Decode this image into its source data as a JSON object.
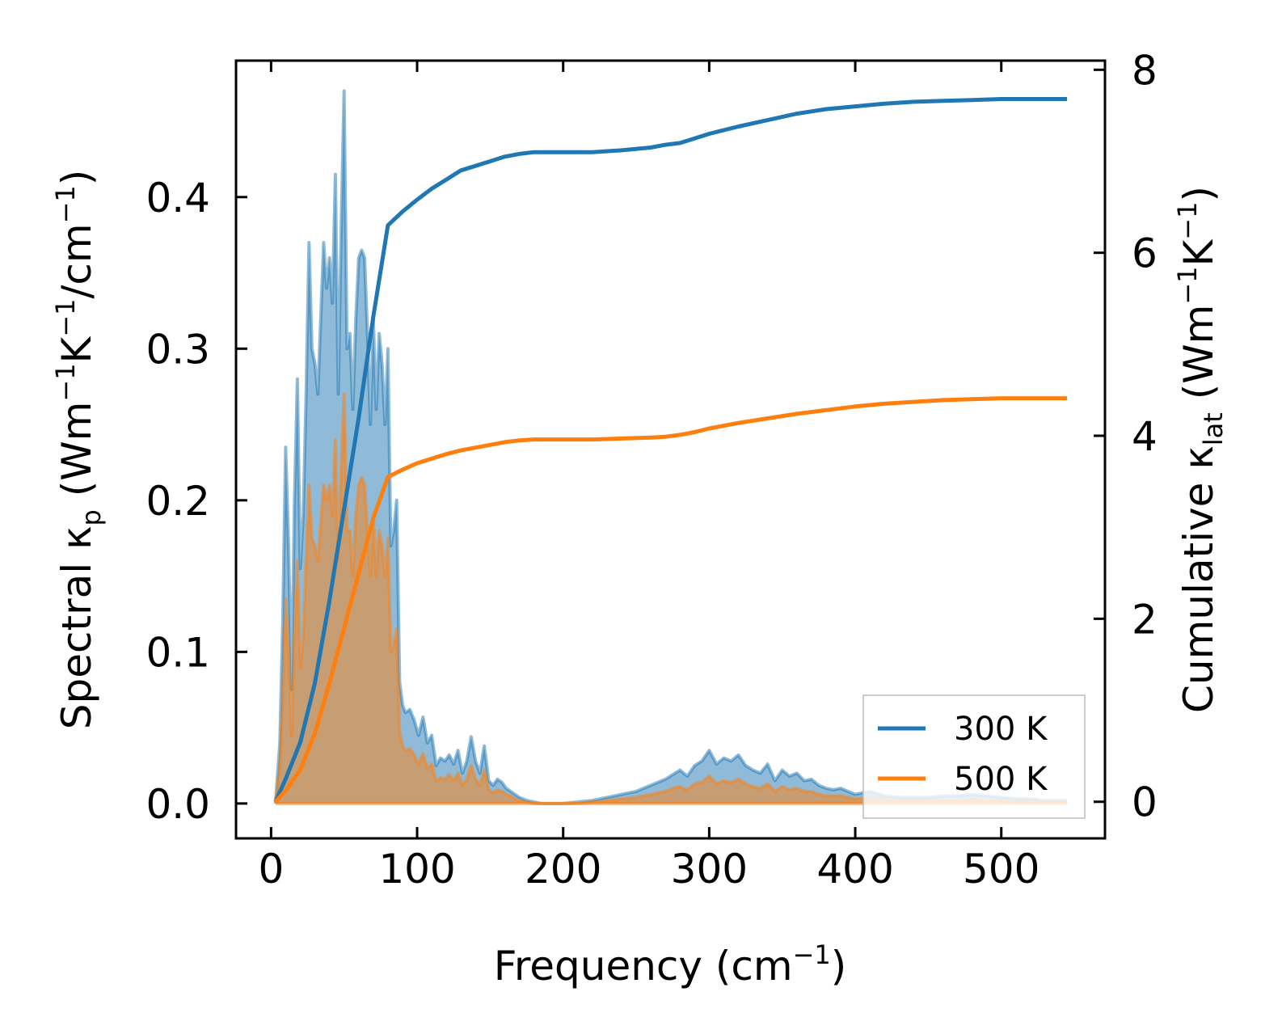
{
  "chart_data": {
    "type": "line",
    "xlabel": {
      "main": "Frequency (cm",
      "sup": "−1",
      "tail": ")"
    },
    "ylabel_left": {
      "a": "Spectral κ",
      "sub": "p",
      "b": " (Wm",
      "sup1": "−1",
      "c": "K",
      "sup2": "−1",
      "d": "/cm",
      "sup3": "−1",
      "e": ")"
    },
    "ylabel_right": {
      "a": "Cumulative κ",
      "sub": "lat",
      "b": " (Wm",
      "sup1": "−1",
      "c": "K",
      "sup2": "−1",
      "d": ")"
    },
    "xlim": [
      -24,
      571
    ],
    "ylim_left": [
      -0.023,
      0.49
    ],
    "ylim_right": [
      -0.4,
      8.1
    ],
    "x_ticks": [
      0,
      100,
      200,
      300,
      400,
      500
    ],
    "y_left_ticks": [
      0.0,
      0.1,
      0.2,
      0.3,
      0.4
    ],
    "y_left_tick_labels": [
      "0.0",
      "0.1",
      "0.2",
      "0.3",
      "0.4"
    ],
    "y_right_ticks": [
      0,
      2,
      4,
      6,
      8
    ],
    "legend": {
      "position": "lower-right",
      "entries": [
        "300 K",
        "500 K"
      ]
    },
    "colors": {
      "s300": "#1f77b4",
      "s500": "#ff7f0e"
    },
    "spectral_x": [
      3,
      6,
      8,
      10,
      12,
      14,
      16,
      18,
      20,
      22,
      24,
      26,
      28,
      30,
      32,
      34,
      36,
      38,
      40,
      42,
      44,
      46,
      48,
      50,
      52,
      54,
      56,
      58,
      60,
      62,
      64,
      66,
      68,
      70,
      72,
      74,
      76,
      78,
      80,
      82,
      84,
      86,
      88,
      90,
      92,
      95,
      98,
      101,
      104,
      107,
      110,
      113,
      116,
      119,
      122,
      125,
      128,
      131,
      134,
      137,
      140,
      143,
      146,
      149,
      152,
      155,
      158,
      161,
      164,
      167,
      170,
      175,
      180,
      185,
      190,
      195,
      200,
      210,
      220,
      230,
      240,
      250,
      260,
      270,
      275,
      280,
      285,
      290,
      295,
      300,
      305,
      310,
      315,
      320,
      325,
      330,
      335,
      340,
      345,
      350,
      355,
      360,
      365,
      370,
      375,
      380,
      385,
      390,
      395,
      400,
      410,
      420,
      430,
      440,
      450,
      460,
      470,
      480,
      490,
      500,
      510,
      520,
      530,
      545
    ],
    "spectral_300": [
      0.0,
      0.04,
      0.12,
      0.235,
      0.17,
      0.075,
      0.2,
      0.28,
      0.155,
      0.19,
      0.27,
      0.37,
      0.3,
      0.29,
      0.27,
      0.32,
      0.37,
      0.34,
      0.36,
      0.33,
      0.415,
      0.27,
      0.38,
      0.47,
      0.3,
      0.31,
      0.26,
      0.32,
      0.36,
      0.365,
      0.36,
      0.31,
      0.25,
      0.32,
      0.26,
      0.31,
      0.29,
      0.25,
      0.3,
      0.17,
      0.18,
      0.2,
      0.08,
      0.065,
      0.06,
      0.062,
      0.055,
      0.045,
      0.057,
      0.04,
      0.045,
      0.025,
      0.03,
      0.028,
      0.032,
      0.026,
      0.035,
      0.02,
      0.028,
      0.044,
      0.028,
      0.02,
      0.038,
      0.015,
      0.012,
      0.016,
      0.014,
      0.01,
      0.008,
      0.006,
      0.004,
      0.002,
      0.001,
      0.0,
      0.0,
      0.0,
      0.0,
      0.001,
      0.002,
      0.004,
      0.006,
      0.008,
      0.012,
      0.016,
      0.019,
      0.022,
      0.018,
      0.025,
      0.028,
      0.035,
      0.026,
      0.03,
      0.028,
      0.032,
      0.025,
      0.022,
      0.02,
      0.026,
      0.015,
      0.022,
      0.018,
      0.02,
      0.015,
      0.016,
      0.012,
      0.01,
      0.009,
      0.01,
      0.008,
      0.006,
      0.008,
      0.005,
      0.004,
      0.004,
      0.004,
      0.005,
      0.005,
      0.006,
      0.005,
      0.004,
      0.003,
      0.003,
      0.002,
      0.002
    ],
    "spectral_500": [
      0.0,
      0.025,
      0.07,
      0.135,
      0.1,
      0.045,
      0.115,
      0.16,
      0.09,
      0.11,
      0.16,
      0.21,
      0.175,
      0.17,
      0.16,
      0.185,
      0.21,
      0.2,
      0.21,
      0.19,
      0.24,
      0.16,
      0.22,
      0.27,
      0.18,
      0.18,
      0.15,
      0.19,
      0.21,
      0.215,
      0.21,
      0.18,
      0.15,
      0.19,
      0.15,
      0.18,
      0.17,
      0.15,
      0.175,
      0.1,
      0.105,
      0.115,
      0.047,
      0.038,
      0.035,
      0.036,
      0.032,
      0.026,
      0.033,
      0.023,
      0.026,
      0.015,
      0.017,
      0.016,
      0.019,
      0.015,
      0.02,
      0.012,
      0.016,
      0.025,
      0.016,
      0.012,
      0.022,
      0.009,
      0.007,
      0.009,
      0.008,
      0.006,
      0.005,
      0.003,
      0.002,
      0.001,
      0.0,
      0.0,
      0.0,
      0.0,
      0.0,
      0.0,
      0.001,
      0.002,
      0.003,
      0.004,
      0.006,
      0.008,
      0.01,
      0.011,
      0.009,
      0.013,
      0.014,
      0.018,
      0.013,
      0.015,
      0.014,
      0.016,
      0.013,
      0.011,
      0.01,
      0.013,
      0.008,
      0.011,
      0.009,
      0.01,
      0.008,
      0.008,
      0.006,
      0.005,
      0.005,
      0.005,
      0.004,
      0.003,
      0.004,
      0.003,
      0.002,
      0.002,
      0.002,
      0.002,
      0.002,
      0.003,
      0.002,
      0.002,
      0.001,
      0.001,
      0.001,
      0.001
    ],
    "cumulative_x": [
      3,
      10,
      20,
      30,
      40,
      50,
      60,
      70,
      80,
      90,
      100,
      110,
      120,
      130,
      140,
      150,
      160,
      170,
      180,
      190,
      200,
      220,
      240,
      260,
      270,
      280,
      290,
      300,
      320,
      340,
      360,
      380,
      400,
      420,
      440,
      460,
      480,
      500,
      520,
      545
    ],
    "cumulative_300": [
      0.0,
      0.25,
      0.65,
      1.3,
      2.2,
      3.2,
      4.2,
      5.3,
      6.3,
      6.45,
      6.58,
      6.7,
      6.8,
      6.9,
      6.95,
      7.0,
      7.05,
      7.08,
      7.1,
      7.1,
      7.1,
      7.1,
      7.12,
      7.15,
      7.18,
      7.2,
      7.25,
      7.3,
      7.38,
      7.45,
      7.52,
      7.57,
      7.6,
      7.63,
      7.65,
      7.66,
      7.67,
      7.68,
      7.68,
      7.68
    ],
    "cumulative_500": [
      0.0,
      0.12,
      0.35,
      0.75,
      1.3,
      1.9,
      2.5,
      3.1,
      3.55,
      3.63,
      3.7,
      3.75,
      3.8,
      3.84,
      3.87,
      3.9,
      3.93,
      3.95,
      3.96,
      3.96,
      3.96,
      3.96,
      3.97,
      3.98,
      3.99,
      4.01,
      4.04,
      4.08,
      4.14,
      4.19,
      4.24,
      4.28,
      4.32,
      4.35,
      4.37,
      4.39,
      4.4,
      4.41,
      4.41,
      4.41
    ]
  }
}
